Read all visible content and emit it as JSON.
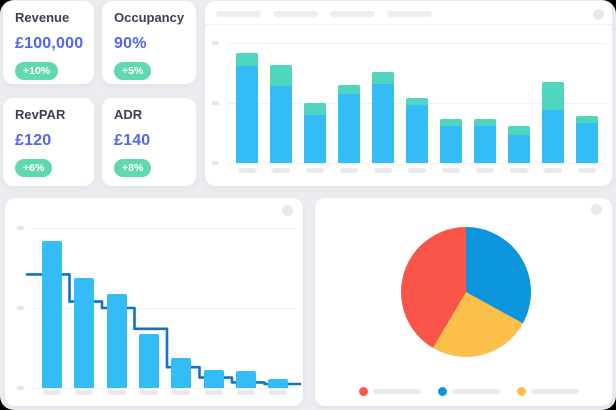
{
  "kpi": {
    "cards": [
      {
        "title": "Revenue",
        "value": "£100,000",
        "change": "+10%"
      },
      {
        "title": "Occupancy",
        "value": "90%",
        "change": "+5%"
      },
      {
        "title": "RevPAR",
        "value": "£120",
        "change": "+6%"
      },
      {
        "title": "ADR",
        "value": "£140",
        "change": "+8%"
      }
    ],
    "value_color": "#5465ee",
    "badge_color": "#61d9af"
  },
  "chart_data": [
    {
      "id": "stacked-bar",
      "type": "bar",
      "stacked": true,
      "note": "axis tick labels and header filter chips are gray skeleton placeholders with no text",
      "categories": [
        "",
        "",
        "",
        "",
        "",
        "",
        "",
        "",
        "",
        "",
        ""
      ],
      "series": [
        {
          "name": "base-segment",
          "color": "#34bcf7",
          "values": [
            81,
            64,
            40,
            57.5,
            66,
            48,
            31,
            31,
            23.5,
            44,
            33.5
          ]
        },
        {
          "name": "top-segment",
          "color": "#50d6bf",
          "values": [
            11,
            18,
            10,
            7.5,
            10,
            6,
            5.5,
            6,
            7.5,
            23.5,
            5.5
          ]
        }
      ],
      "ylim": [
        0,
        100
      ],
      "gridlines": 3,
      "header_chip_count": 4
    },
    {
      "id": "pareto",
      "type": "bar",
      "note": "descending bars with dark-blue step line overlay; axis labels are skeleton placeholders",
      "categories": [
        "",
        "",
        "",
        "",
        "",
        "",
        "",
        ""
      ],
      "bar_color": "#34bcf7",
      "line_color": "#1272c4",
      "bar_values": [
        92,
        69,
        59,
        34,
        19,
        11.5,
        10.5,
        5.5
      ],
      "line_values": [
        71,
        54,
        50,
        37,
        13,
        6.5,
        3.5,
        2.5
      ],
      "ylim": [
        0,
        100
      ],
      "gridlines": 3
    },
    {
      "id": "pie",
      "type": "pie",
      "note": "legend labels are skeleton placeholders; slices drawn clockwise from 12 o'clock",
      "slices": [
        {
          "name": "red-slice",
          "color": "#fb5549",
          "value": 41.5
        },
        {
          "name": "blue-slice",
          "color": "#0b95dc",
          "value": 33
        },
        {
          "name": "yellow-slice",
          "color": "#fcc04a",
          "value": 25.5
        }
      ],
      "clockwise_from_top": [
        "blue-slice",
        "yellow-slice",
        "red-slice"
      ]
    }
  ]
}
